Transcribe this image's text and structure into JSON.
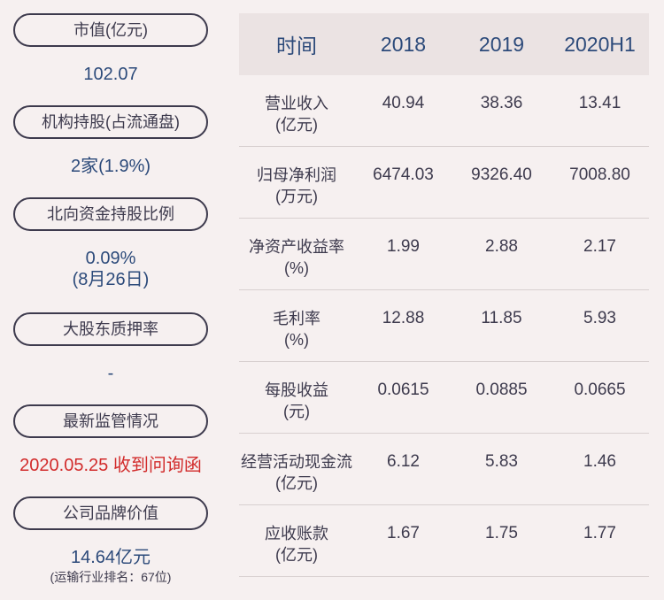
{
  "left": {
    "items": [
      {
        "label": "市值(亿元)",
        "value": "102.07"
      },
      {
        "label": "机构持股(占流通盘)",
        "value": "2家(1.9%)"
      },
      {
        "label": "北向资金持股比例",
        "value": "0.09%",
        "value2": "(8月26日)"
      },
      {
        "label": "大股东质押率",
        "value": "-"
      },
      {
        "label": "最新监管情况",
        "value": "2020.05.25 收到问询函"
      },
      {
        "label": "公司品牌价值",
        "value": "14.64亿元",
        "note": "(运输行业排名：67位)"
      }
    ]
  },
  "table": {
    "headers": [
      "时间",
      "2018",
      "2019",
      "2020H1"
    ],
    "rows": [
      {
        "name": "营业收入",
        "unit": "(亿元)",
        "values": [
          "40.94",
          "38.36",
          "13.41"
        ]
      },
      {
        "name": "归母净利润",
        "unit": "(万元)",
        "values": [
          "6474.03",
          "9326.40",
          "7008.80"
        ]
      },
      {
        "name": "净资产收益率",
        "unit": "(%)",
        "values": [
          "1.99",
          "2.88",
          "2.17"
        ]
      },
      {
        "name": "毛利率",
        "unit": "(%)",
        "values": [
          "12.88",
          "11.85",
          "5.93"
        ]
      },
      {
        "name": "每股收益",
        "unit": "(元)",
        "values": [
          "0.0615",
          "0.0885",
          "0.0665"
        ]
      },
      {
        "name": "经营活动现金流",
        "unit": "(亿元)",
        "values": [
          "6.12",
          "5.83",
          "1.46"
        ]
      },
      {
        "name": "应收账款",
        "unit": "(亿元)",
        "values": [
          "1.67",
          "1.75",
          "1.77"
        ]
      }
    ]
  }
}
